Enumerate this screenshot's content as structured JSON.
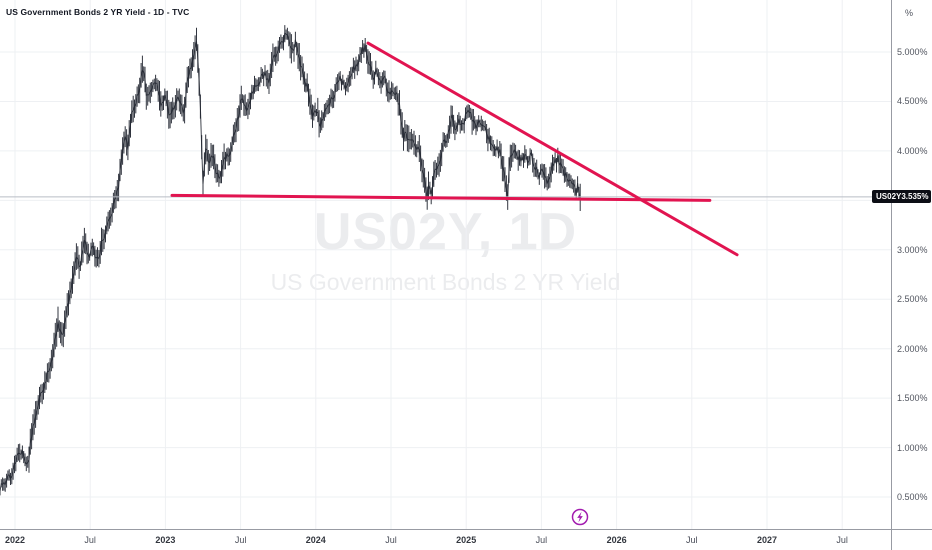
{
  "header": {
    "title": "US Government Bonds 2 YR Yield - 1D - TVC"
  },
  "watermark": {
    "symbol_line": "US02Y, 1D",
    "name_line": "US Government Bonds 2 YR Yield"
  },
  "price_label": {
    "symbol": "US02Y",
    "value": "3.535%"
  },
  "y_axis": {
    "unit_label": "%",
    "tick_labels": [
      {
        "v": 5.0,
        "label": "5.000%"
      },
      {
        "v": 4.5,
        "label": "4.500%"
      },
      {
        "v": 4.0,
        "label": "4.000%"
      },
      {
        "v": 3.0,
        "label": "3.000%"
      },
      {
        "v": 2.5,
        "label": "2.500%"
      },
      {
        "v": 2.0,
        "label": "2.000%"
      },
      {
        "v": 1.5,
        "label": "1.500%"
      },
      {
        "v": 1.0,
        "label": "1.000%"
      },
      {
        "v": 0.5,
        "label": "0.500%"
      }
    ]
  },
  "x_axis": {
    "ticks": [
      {
        "label": "2022",
        "t": 2022.0,
        "major": true
      },
      {
        "label": "Jul",
        "t": 2022.5,
        "major": false
      },
      {
        "label": "2023",
        "t": 2023.0,
        "major": true
      },
      {
        "label": "Jul",
        "t": 2023.5,
        "major": false
      },
      {
        "label": "2024",
        "t": 2024.0,
        "major": true
      },
      {
        "label": "Jul",
        "t": 2024.5,
        "major": false
      },
      {
        "label": "2025",
        "t": 2025.0,
        "major": true
      },
      {
        "label": "Jul",
        "t": 2025.5,
        "major": false
      },
      {
        "label": "2026",
        "t": 2026.0,
        "major": true
      },
      {
        "label": "Jul",
        "t": 2026.5,
        "major": false
      },
      {
        "label": "2027",
        "t": 2027.0,
        "major": true
      },
      {
        "label": "Jul",
        "t": 2027.5,
        "major": false
      }
    ]
  },
  "colors": {
    "trendline": "#e11450",
    "bars": "#20242f",
    "grid": "#eef0f3",
    "price_line": "#b9bdc5",
    "axis_border": "#989ba3",
    "label_bg": "#0c0e15",
    "label_fg": "#ffffff",
    "boost_icon": "#a21caf",
    "axis_text": "#51555f"
  },
  "chart_data": {
    "type": "line",
    "style": "daily-ohlc-bars",
    "symbol": "US02Y",
    "title": "US Government Bonds 2 YR Yield",
    "interval": "1D",
    "source": "TVC",
    "unit": "%",
    "last_value": 3.535,
    "xlim_visible_years": [
      2021.9,
      2027.93
    ],
    "ylim_visible_percent": [
      0.2,
      5.35
    ],
    "grid": true,
    "y_gridlines": [
      0.5,
      1.0,
      1.5,
      2.0,
      2.5,
      3.0,
      3.5,
      4.0,
      4.5,
      5.0
    ],
    "series_anchors_t_v": [
      [
        2021.9,
        0.58
      ],
      [
        2021.967,
        0.7
      ],
      [
        2022.033,
        0.98
      ],
      [
        2022.086,
        0.85
      ],
      [
        2022.133,
        1.32
      ],
      [
        2022.199,
        1.65
      ],
      [
        2022.246,
        1.9
      ],
      [
        2022.286,
        2.28
      ],
      [
        2022.313,
        2.12
      ],
      [
        2022.352,
        2.48
      ],
      [
        2022.379,
        2.62
      ],
      [
        2022.406,
        2.95
      ],
      [
        2022.43,
        2.82
      ],
      [
        2022.46,
        3.08
      ],
      [
        2022.49,
        2.92
      ],
      [
        2022.52,
        3.02
      ],
      [
        2022.55,
        2.88
      ],
      [
        2022.58,
        3.1
      ],
      [
        2022.61,
        3.22
      ],
      [
        2022.645,
        3.38
      ],
      [
        2022.685,
        3.58
      ],
      [
        2022.73,
        4.21
      ],
      [
        2022.75,
        4.02
      ],
      [
        2022.78,
        4.4
      ],
      [
        2022.82,
        4.58
      ],
      [
        2022.851,
        4.86
      ],
      [
        2022.878,
        4.51
      ],
      [
        2022.91,
        4.64
      ],
      [
        2022.94,
        4.7
      ],
      [
        2022.971,
        4.47
      ],
      [
        2023.0,
        4.57
      ],
      [
        2023.031,
        4.34
      ],
      [
        2023.06,
        4.47
      ],
      [
        2023.08,
        4.58
      ],
      [
        2023.12,
        4.39
      ],
      [
        2023.15,
        4.72
      ],
      [
        2023.183,
        4.92
      ],
      [
        2023.21,
        5.09
      ],
      [
        2023.23,
        4.57
      ],
      [
        2023.25,
        3.64
      ],
      [
        2023.27,
        4.11
      ],
      [
        2023.29,
        3.83
      ],
      [
        2023.31,
        3.99
      ],
      [
        2023.336,
        3.81
      ],
      [
        2023.363,
        3.72
      ],
      [
        2023.39,
        3.89
      ],
      [
        2023.416,
        3.96
      ],
      [
        2023.443,
        4.06
      ],
      [
        2023.47,
        4.23
      ],
      [
        2023.509,
        4.58
      ],
      [
        2023.536,
        4.41
      ],
      [
        2023.562,
        4.53
      ],
      [
        2023.596,
        4.64
      ],
      [
        2023.629,
        4.72
      ],
      [
        2023.662,
        4.78
      ],
      [
        2023.689,
        4.66
      ],
      [
        2023.715,
        4.9
      ],
      [
        2023.749,
        5.04
      ],
      [
        2023.782,
        5.12
      ],
      [
        2023.815,
        5.2
      ],
      [
        2023.842,
        5.0
      ],
      [
        2023.868,
        5.1
      ],
      [
        2023.895,
        4.9
      ],
      [
        2023.922,
        4.72
      ],
      [
        2023.948,
        4.64
      ],
      [
        2023.975,
        4.33
      ],
      [
        2024.001,
        4.43
      ],
      [
        2024.028,
        4.25
      ],
      [
        2024.054,
        4.37
      ],
      [
        2024.081,
        4.43
      ],
      [
        2024.108,
        4.53
      ],
      [
        2024.134,
        4.63
      ],
      [
        2024.161,
        4.72
      ],
      [
        2024.194,
        4.64
      ],
      [
        2024.227,
        4.74
      ],
      [
        2024.261,
        4.84
      ],
      [
        2024.294,
        4.96
      ],
      [
        2024.327,
        5.05
      ],
      [
        2024.354,
        4.88
      ],
      [
        2024.38,
        4.74
      ],
      [
        2024.407,
        4.8
      ],
      [
        2024.434,
        4.68
      ],
      [
        2024.46,
        4.72
      ],
      [
        2024.487,
        4.58
      ],
      [
        2024.513,
        4.64
      ],
      [
        2024.54,
        4.56
      ],
      [
        2024.56,
        4.42
      ],
      [
        2024.58,
        4.13
      ],
      [
        2024.6,
        4.23
      ],
      [
        2024.62,
        4.07
      ],
      [
        2024.64,
        4.17
      ],
      [
        2024.659,
        3.99
      ],
      [
        2024.679,
        4.05
      ],
      [
        2024.699,
        3.89
      ],
      [
        2024.719,
        3.73
      ],
      [
        2024.739,
        3.54
      ],
      [
        2024.753,
        3.64
      ],
      [
        2024.766,
        3.56
      ],
      [
        2024.786,
        3.75
      ],
      [
        2024.806,
        3.83
      ],
      [
        2024.826,
        3.93
      ],
      [
        2024.846,
        4.05
      ],
      [
        2024.866,
        4.11
      ],
      [
        2024.886,
        4.19
      ],
      [
        2024.906,
        4.34
      ],
      [
        2024.926,
        4.23
      ],
      [
        2024.946,
        4.31
      ],
      [
        2024.965,
        4.25
      ],
      [
        2024.985,
        4.29
      ],
      [
        2025.005,
        4.37
      ],
      [
        2025.025,
        4.41
      ],
      [
        2025.045,
        4.29
      ],
      [
        2025.065,
        4.23
      ],
      [
        2025.085,
        4.27
      ],
      [
        2025.105,
        4.23
      ],
      [
        2025.125,
        4.27
      ],
      [
        2025.145,
        4.15
      ],
      [
        2025.165,
        4.07
      ],
      [
        2025.185,
        3.99
      ],
      [
        2025.205,
        4.03
      ],
      [
        2025.225,
        3.99
      ],
      [
        2025.245,
        3.83
      ],
      [
        2025.265,
        3.63
      ],
      [
        2025.275,
        3.5
      ],
      [
        2025.285,
        3.81
      ],
      [
        2025.298,
        3.99
      ],
      [
        2025.311,
        3.93
      ],
      [
        2025.331,
        4.01
      ],
      [
        2025.351,
        3.93
      ],
      [
        2025.371,
        3.89
      ],
      [
        2025.391,
        3.95
      ],
      [
        2025.411,
        3.91
      ],
      [
        2025.431,
        3.97
      ],
      [
        2025.451,
        3.87
      ],
      [
        2025.471,
        3.79
      ],
      [
        2025.491,
        3.75
      ],
      [
        2025.511,
        3.81
      ],
      [
        2025.531,
        3.69
      ],
      [
        2025.551,
        3.75
      ],
      [
        2025.571,
        3.85
      ],
      [
        2025.591,
        3.89
      ],
      [
        2025.611,
        3.93
      ],
      [
        2025.631,
        3.83
      ],
      [
        2025.651,
        3.77
      ],
      [
        2025.671,
        3.71
      ],
      [
        2025.691,
        3.67
      ],
      [
        2025.711,
        3.63
      ],
      [
        2025.731,
        3.59
      ],
      [
        2025.745,
        3.65
      ],
      [
        2025.758,
        3.55
      ]
    ],
    "trendlines": [
      {
        "name": "descending-resistance",
        "from_t_v": [
          2024.347,
          5.09
        ],
        "to_t_v": [
          2026.801,
          2.95
        ]
      },
      {
        "name": "horizontal-support",
        "from_t_v": [
          2023.044,
          3.55
        ],
        "to_t_v": [
          2026.62,
          3.5
        ]
      }
    ],
    "price_line_value": 3.535,
    "legend_position": "none"
  }
}
